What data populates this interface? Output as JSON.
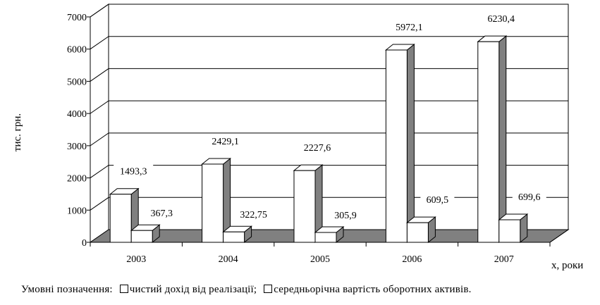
{
  "chart_data": {
    "type": "bar",
    "style": "3d-clustered-column",
    "categories": [
      "2003",
      "2004",
      "2005",
      "2006",
      "2007"
    ],
    "series": [
      {
        "name": "чистий дохід від реалізації",
        "values": [
          1493.3,
          2429.1,
          2227.6,
          5972.1,
          6230.4
        ],
        "labels": [
          "1493,3",
          "2429,1",
          "2227,6",
          "5972,1",
          "6230,4"
        ]
      },
      {
        "name": "середньорічна вартість оборотних активів",
        "values": [
          367.3,
          322.75,
          305.9,
          609.5,
          699.6
        ],
        "labels": [
          "367,3",
          "322,75",
          "305,9",
          "609,5",
          "699,6"
        ]
      }
    ],
    "ylabel": "тис. грн.",
    "xlabel": "х, роки",
    "ylim": [
      0,
      7000
    ],
    "yticks": [
      0,
      1000,
      2000,
      3000,
      4000,
      5000,
      6000,
      7000
    ],
    "grid": true,
    "colors": {
      "bar_front": "#ffffff",
      "bar_side": "#808080",
      "bar_top": "#ffffff",
      "floor": "#808080",
      "outline": "#000000"
    }
  },
  "legend": {
    "prefix": "Умовні позначення:",
    "items": [
      "чистий дохід від реалізації;",
      "середньорічна вартість оборотних активів."
    ]
  }
}
